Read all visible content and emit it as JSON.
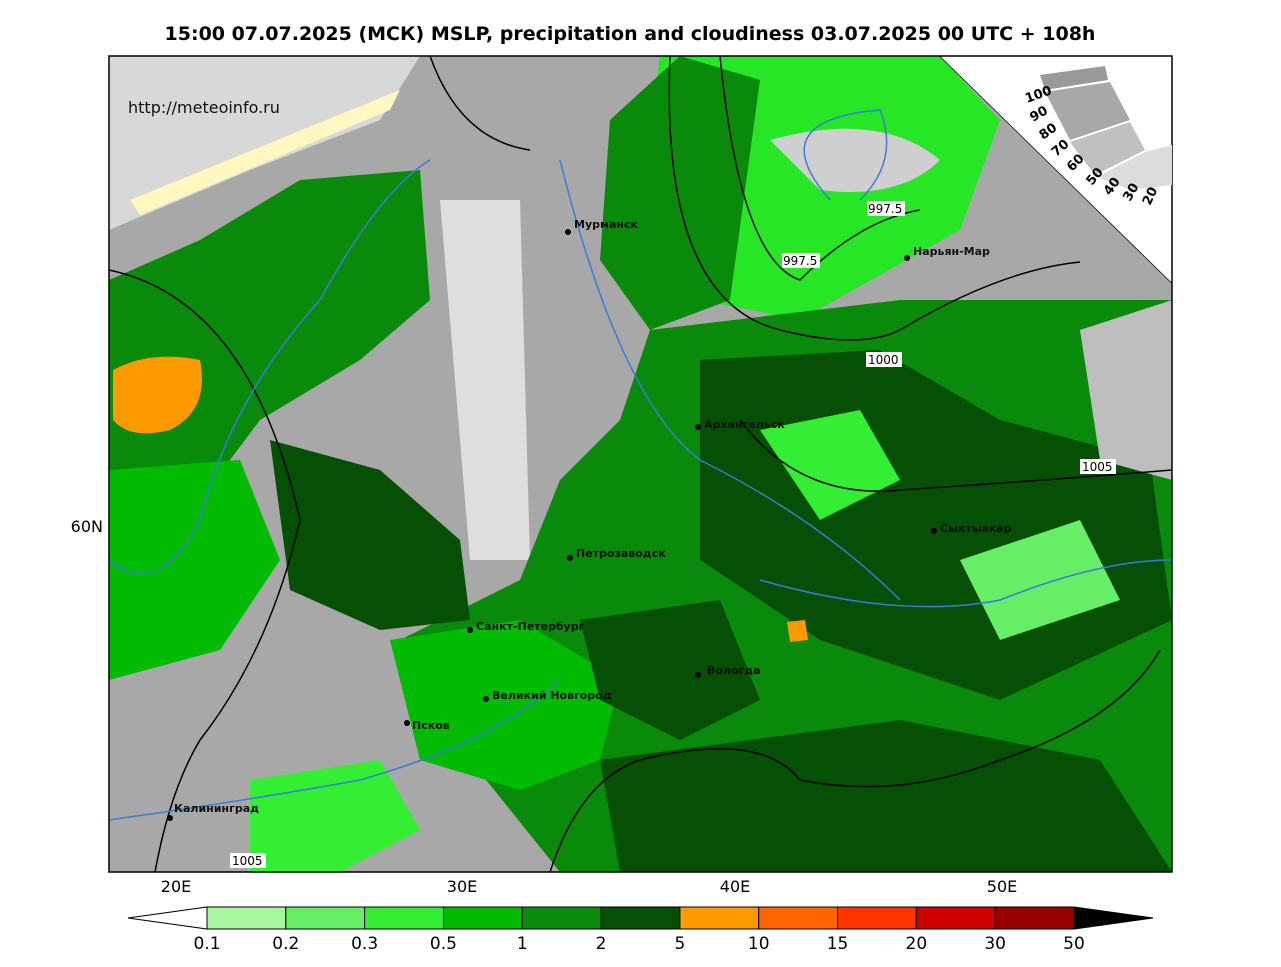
{
  "header": {
    "title": "15:00 07.07.2025 (МСК) MSLP, precipitation and cloudiness 03.07.2025 00 UTC + 108h"
  },
  "map": {
    "url": "http://meteoinfo.ru",
    "cities": [
      "Мурманск",
      "Нарьян-Мар",
      "Архангельск",
      "Сыктывкар",
      "Петрозаводск",
      "Санкт-Петербург",
      "Вологда",
      "Великий Новгород",
      "Псков",
      "Калининград"
    ],
    "isobar_labels": [
      "997.5",
      "997.5",
      "1000",
      "1005",
      "1005"
    ],
    "lon_labels": [
      "20E",
      "30E",
      "40E",
      "50E"
    ],
    "lat_labels": [
      "60N"
    ],
    "cloud_scale": [
      "100",
      "90",
      "80",
      "70",
      "60",
      "50",
      "40",
      "30",
      "20"
    ]
  },
  "colorbar": {
    "ticks": [
      0.1,
      0.2,
      0.3,
      0.5,
      1,
      2,
      5,
      10,
      15,
      20,
      30,
      50
    ],
    "colors": [
      "#a8f7a0",
      "#66ee66",
      "#33ee33",
      "#00bb00",
      "#0a8a0a",
      "#055005",
      "#ff9900",
      "#ff6600",
      "#ff3300",
      "#cc0000",
      "#990000"
    ]
  }
}
